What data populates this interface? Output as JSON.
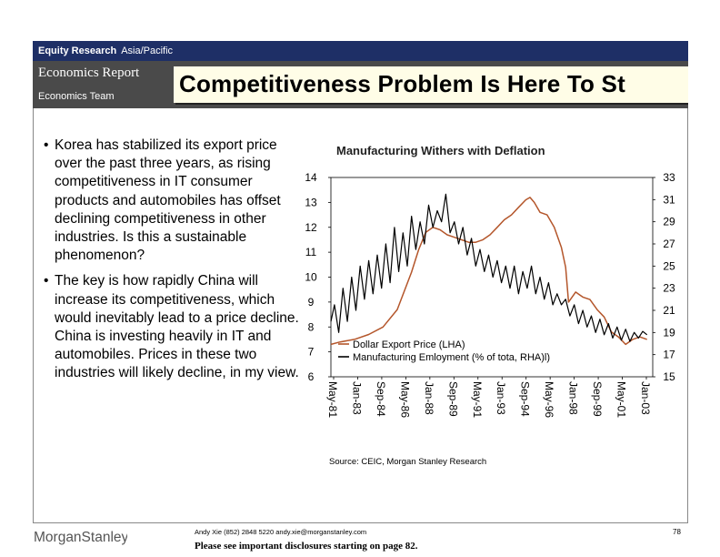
{
  "header": {
    "category": "Equity Research",
    "region": "Asia/Pacific",
    "report": "Economics Report",
    "team": "Economics Team",
    "title": "Competitiveness Problem Is Here To St"
  },
  "bullets": [
    "Korea has stabilized its export price over the past three years, as rising competitiveness in IT consumer products and automobiles has offset declining competitiveness in other industries.  Is this a sustainable phenomenon?",
    "The key is how rapidly China will increase its competitiveness, which would inevitably lead to a price decline.  China is investing heavily in IT and automobiles.  Prices in these two industries will likely decline, in my view."
  ],
  "chart_data": {
    "type": "line",
    "title": "Manufacturing Withers with Deflation",
    "x_labels": [
      "May-81",
      "Jan-83",
      "Sep-84",
      "May-86",
      "Jan-88",
      "Sep-89",
      "May-91",
      "Jan-93",
      "Sep-94",
      "May-96",
      "Jan-98",
      "Sep-99",
      "May-01",
      "Jan-03"
    ],
    "y_left": {
      "min": 6,
      "max": 14,
      "ticks": [
        6,
        7,
        8,
        9,
        10,
        11,
        12,
        13,
        14
      ]
    },
    "y_right": {
      "min": 15,
      "max": 33,
      "ticks": [
        15,
        17,
        19,
        21,
        23,
        25,
        27,
        29,
        31,
        33
      ]
    },
    "series": [
      {
        "name": "Dollar Export Price (LHA)",
        "axis": "left",
        "color": "#b4562b",
        "x": [
          1981.35,
          1982,
          1983,
          1984,
          1985,
          1986,
          1987,
          1987.5,
          1988,
          1988.5,
          1989,
          1989.5,
          1990,
          1990.5,
          1991,
          1991.5,
          1992,
          1992.5,
          1993,
          1993.5,
          1994,
          1994.5,
          1995,
          1995.3,
          1995.6,
          1996,
          1996.5,
          1997,
          1997.5,
          1997.8,
          1998,
          1998.5,
          1999,
          1999.5,
          2000,
          2000.5,
          2001,
          2001.5,
          2002,
          2002.5,
          2003,
          2003.5
        ],
        "values": [
          7.3,
          7.4,
          7.5,
          7.7,
          8.0,
          8.7,
          10.2,
          11.1,
          11.8,
          12.0,
          11.9,
          11.7,
          11.6,
          11.5,
          11.4,
          11.4,
          11.5,
          11.7,
          12.0,
          12.3,
          12.5,
          12.8,
          13.1,
          13.2,
          13.0,
          12.6,
          12.5,
          12.0,
          11.2,
          10.4,
          9.0,
          9.4,
          9.2,
          9.1,
          8.7,
          8.4,
          7.8,
          7.6,
          7.3,
          7.5,
          7.6,
          7.5
        ]
      },
      {
        "name": "Manufacturing Emloyment (% of tota, RHA)l)",
        "axis": "right",
        "color": "#000000",
        "x": [
          1981.35,
          1981.6,
          1981.9,
          1982.2,
          1982.5,
          1982.8,
          1983.1,
          1983.4,
          1983.7,
          1984,
          1984.3,
          1984.6,
          1984.9,
          1985.2,
          1985.5,
          1985.8,
          1986.1,
          1986.4,
          1986.7,
          1987,
          1987.3,
          1987.6,
          1987.9,
          1988.2,
          1988.5,
          1988.8,
          1989.1,
          1989.4,
          1989.7,
          1990,
          1990.3,
          1990.6,
          1990.9,
          1991.2,
          1991.5,
          1991.8,
          1992.1,
          1992.4,
          1992.7,
          1993,
          1993.3,
          1993.6,
          1993.9,
          1994.2,
          1994.5,
          1994.8,
          1995.1,
          1995.4,
          1995.7,
          1996,
          1996.3,
          1996.6,
          1996.9,
          1997.2,
          1997.5,
          1997.8,
          1998.1,
          1998.4,
          1998.7,
          1999,
          1999.3,
          1999.6,
          1999.9,
          2000.2,
          2000.5,
          2000.8,
          2001.1,
          2001.4,
          2001.7,
          2002,
          2002.3,
          2002.6,
          2002.9,
          2003.2,
          2003.5
        ],
        "values": [
          20.0,
          21.5,
          19.0,
          23.0,
          20.0,
          24.0,
          21.0,
          25.0,
          22.0,
          25.5,
          22.5,
          26.0,
          23.0,
          27.0,
          23.5,
          28.5,
          24.5,
          28.0,
          25.0,
          29.5,
          26.5,
          29.0,
          27.0,
          30.5,
          28.5,
          30.0,
          29.0,
          31.5,
          28.0,
          29.0,
          27.0,
          28.5,
          26.0,
          27.5,
          25.0,
          26.5,
          24.5,
          26.0,
          24.0,
          25.5,
          23.5,
          25.0,
          23.0,
          25.0,
          22.5,
          24.5,
          23.0,
          25.0,
          22.5,
          24.0,
          22.0,
          23.5,
          21.5,
          22.5,
          21.5,
          22.0,
          20.5,
          21.5,
          19.8,
          21.0,
          19.5,
          20.5,
          19.0,
          20.2,
          18.8,
          19.8,
          18.5,
          19.5,
          18.3,
          19.3,
          18.2,
          19.0,
          18.5,
          19.1,
          18.8
        ]
      }
    ]
  },
  "source": "Source: CEIC, Morgan Stanley Research",
  "footer": {
    "logo": "MorganStanley",
    "contact": "Andy Xie (852) 2848 5220  andy.xie@morganstanley.com",
    "disclosure": "Please see important disclosures starting on page 82.",
    "page": "78"
  }
}
